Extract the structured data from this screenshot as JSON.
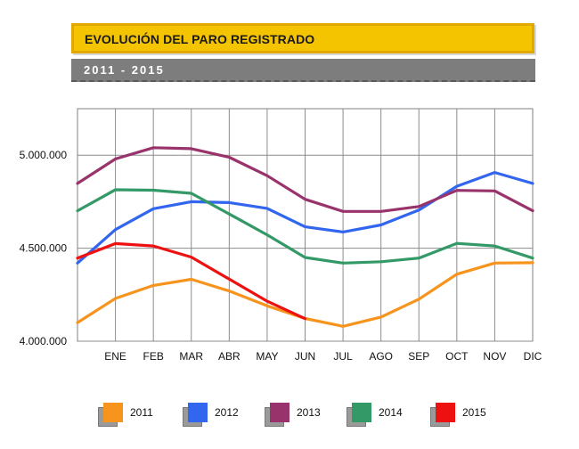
{
  "header": {
    "title": "EVOLUCIÓN DEL PARO REGISTRADO",
    "subtitle": "2011 - 2015"
  },
  "chart_data": {
    "type": "line",
    "categories": [
      "",
      "ENE",
      "FEB",
      "MAR",
      "ABR",
      "MAY",
      "JUN",
      "JUL",
      "AGO",
      "SEP",
      "OCT",
      "NOV",
      "DIC"
    ],
    "ylim": [
      4000000,
      5250000
    ],
    "yticks": [
      4000000,
      4500000,
      5000000
    ],
    "ytick_labels": [
      "4.000.000",
      "4.500.000",
      "5.000.000"
    ],
    "grid": "vertical",
    "legend_position": "bottom",
    "series": [
      {
        "name": "2011",
        "color": "#f7941d",
        "values": [
          4100000,
          4230000,
          4300000,
          4333000,
          4270000,
          4190000,
          4122000,
          4080000,
          4130000,
          4226000,
          4360000,
          4420000,
          4422000
        ]
      },
      {
        "name": "2012",
        "color": "#3366ee",
        "values": [
          4420000,
          4600000,
          4712000,
          4750000,
          4745000,
          4714000,
          4615000,
          4587000,
          4625000,
          4705000,
          4833000,
          4907000,
          4848000
        ]
      },
      {
        "name": "2013",
        "color": "#99336b",
        "values": [
          4848000,
          4980000,
          5040000,
          5035000,
          4989000,
          4890000,
          4763000,
          4698000,
          4698000,
          4724000,
          4811000,
          4808000,
          4701000
        ]
      },
      {
        "name": "2014",
        "color": "#339966",
        "values": [
          4701000,
          4814000,
          4812000,
          4795000,
          4684000,
          4572000,
          4450000,
          4420000,
          4427000,
          4447000,
          4526000,
          4512000,
          4447000
        ]
      },
      {
        "name": "2015",
        "color": "#ee1111",
        "values": [
          4447000,
          4525000,
          4512000,
          4452000,
          4334000,
          4215000,
          4121000,
          null,
          null,
          null,
          null,
          null,
          null
        ]
      }
    ]
  }
}
